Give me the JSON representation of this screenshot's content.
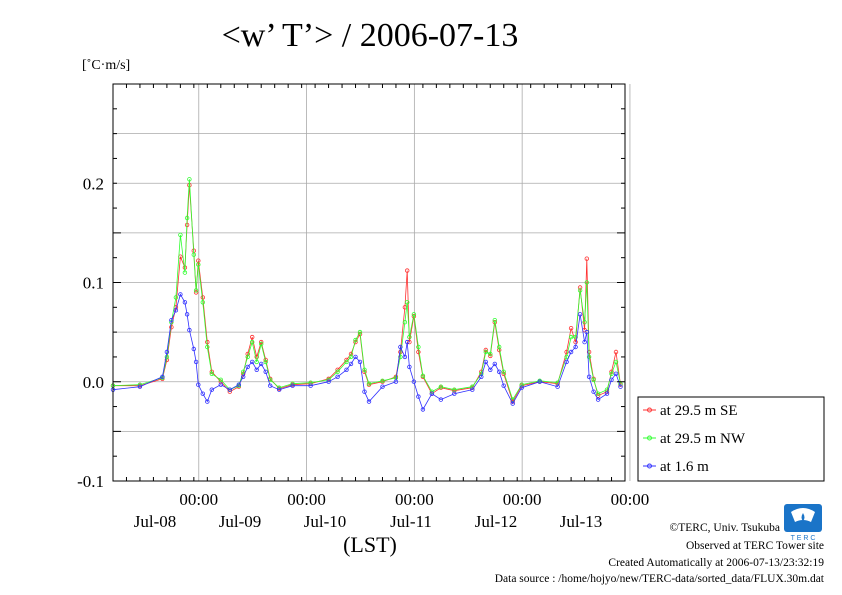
{
  "chart_data": {
    "type": "line",
    "title": "<w’ T’> / 2006-07-13",
    "ylabel": "[˚C·m/s]",
    "xlabel": "(LST)",
    "x_start": "2006-07-07 18:00",
    "ylim": [
      -0.1,
      0.3
    ],
    "yticks": [
      "0.2",
      "0.1",
      "0.0",
      "-0.1"
    ],
    "xticks_time": [
      "00:00",
      "00:00",
      "00:00",
      "00:00",
      "00:00"
    ],
    "xticks_date": [
      "Jul-08",
      "Jul-09",
      "Jul-10",
      "Jul-11",
      "Jul-12",
      "Jul-13"
    ],
    "grid": true,
    "legend_position": "right",
    "series": [
      {
        "name": "at 29.5 m SE",
        "color": "#ff3030",
        "points": [
          [
            0,
            -0.004
          ],
          [
            6,
            -0.004
          ],
          [
            11,
            0.003
          ],
          [
            12,
            0.022
          ],
          [
            13,
            0.055
          ],
          [
            14,
            0.075
          ],
          [
            15,
            0.126
          ],
          [
            16,
            0.115
          ],
          [
            16.5,
            0.158
          ],
          [
            17,
            0.198
          ],
          [
            18,
            0.132
          ],
          [
            18.5,
            0.09
          ],
          [
            19,
            0.122
          ],
          [
            20,
            0.085
          ],
          [
            21,
            0.04
          ],
          [
            22,
            0.01
          ],
          [
            24,
            0.0
          ],
          [
            26,
            -0.01
          ],
          [
            28,
            -0.005
          ],
          [
            29,
            0.008
          ],
          [
            30,
            0.028
          ],
          [
            31,
            0.045
          ],
          [
            32,
            0.025
          ],
          [
            33,
            0.04
          ],
          [
            34,
            0.022
          ],
          [
            35,
            0.003
          ],
          [
            37,
            -0.007
          ],
          [
            40,
            -0.003
          ],
          [
            44,
            -0.002
          ],
          [
            48,
            0.003
          ],
          [
            50,
            0.012
          ],
          [
            52,
            0.022
          ],
          [
            53,
            0.028
          ],
          [
            54,
            0.04
          ],
          [
            55,
            0.048
          ],
          [
            56,
            0.01
          ],
          [
            57,
            -0.003
          ],
          [
            60,
            0.0
          ],
          [
            63,
            0.005
          ],
          [
            64,
            0.03
          ],
          [
            65,
            0.075
          ],
          [
            65.5,
            0.112
          ],
          [
            66,
            0.04
          ],
          [
            67,
            0.066
          ],
          [
            68,
            0.03
          ],
          [
            69,
            0.005
          ],
          [
            71,
            -0.012
          ],
          [
            73,
            -0.006
          ],
          [
            76,
            -0.009
          ],
          [
            80,
            -0.006
          ],
          [
            82,
            0.01
          ],
          [
            83,
            0.032
          ],
          [
            84,
            0.026
          ],
          [
            85,
            0.06
          ],
          [
            86,
            0.032
          ],
          [
            87,
            0.008
          ],
          [
            89,
            -0.02
          ],
          [
            91,
            -0.004
          ],
          [
            95,
            0.0
          ],
          [
            99,
            -0.002
          ],
          [
            101,
            0.03
          ],
          [
            102,
            0.054
          ],
          [
            103,
            0.04
          ],
          [
            104,
            0.095
          ],
          [
            105,
            0.052
          ],
          [
            105.5,
            0.124
          ],
          [
            106,
            0.03
          ],
          [
            107,
            0.003
          ],
          [
            108,
            -0.014
          ],
          [
            110,
            -0.01
          ],
          [
            111,
            0.01
          ],
          [
            112,
            0.03
          ],
          [
            113,
            -0.003
          ]
        ]
      },
      {
        "name": "at 29.5 m NW",
        "color": "#30ff30",
        "points": [
          [
            0,
            -0.004
          ],
          [
            6,
            -0.003
          ],
          [
            11,
            0.004
          ],
          [
            12,
            0.025
          ],
          [
            13,
            0.06
          ],
          [
            14,
            0.085
          ],
          [
            15,
            0.148
          ],
          [
            16,
            0.11
          ],
          [
            16.5,
            0.165
          ],
          [
            17,
            0.204
          ],
          [
            18,
            0.128
          ],
          [
            18.5,
            0.092
          ],
          [
            19,
            0.118
          ],
          [
            20,
            0.08
          ],
          [
            21,
            0.035
          ],
          [
            22,
            0.008
          ],
          [
            24,
            0.002
          ],
          [
            26,
            -0.008
          ],
          [
            28,
            -0.004
          ],
          [
            29,
            0.01
          ],
          [
            30,
            0.025
          ],
          [
            31,
            0.04
          ],
          [
            32,
            0.02
          ],
          [
            33,
            0.038
          ],
          [
            34,
            0.02
          ],
          [
            35,
            0.002
          ],
          [
            37,
            -0.006
          ],
          [
            40,
            -0.002
          ],
          [
            44,
            -0.001
          ],
          [
            48,
            0.002
          ],
          [
            50,
            0.01
          ],
          [
            52,
            0.02
          ],
          [
            53,
            0.025
          ],
          [
            54,
            0.042
          ],
          [
            55,
            0.05
          ],
          [
            56,
            0.012
          ],
          [
            57,
            -0.002
          ],
          [
            60,
            0.001
          ],
          [
            63,
            0.004
          ],
          [
            64,
            0.025
          ],
          [
            65,
            0.06
          ],
          [
            65.5,
            0.08
          ],
          [
            66,
            0.045
          ],
          [
            67,
            0.068
          ],
          [
            68,
            0.035
          ],
          [
            69,
            0.006
          ],
          [
            71,
            -0.01
          ],
          [
            73,
            -0.005
          ],
          [
            76,
            -0.008
          ],
          [
            80,
            -0.005
          ],
          [
            82,
            0.008
          ],
          [
            83,
            0.03
          ],
          [
            84,
            0.028
          ],
          [
            85,
            0.062
          ],
          [
            86,
            0.035
          ],
          [
            87,
            0.01
          ],
          [
            89,
            -0.018
          ],
          [
            91,
            -0.003
          ],
          [
            95,
            0.001
          ],
          [
            99,
            -0.001
          ],
          [
            101,
            0.025
          ],
          [
            102,
            0.045
          ],
          [
            103,
            0.045
          ],
          [
            104,
            0.092
          ],
          [
            105,
            0.06
          ],
          [
            105.5,
            0.1
          ],
          [
            106,
            0.025
          ],
          [
            107,
            0.002
          ],
          [
            108,
            -0.012
          ],
          [
            110,
            -0.008
          ],
          [
            111,
            0.008
          ],
          [
            112,
            0.02
          ],
          [
            113,
            -0.002
          ]
        ]
      },
      {
        "name": "at 1.6 m",
        "color": "#3030ff",
        "points": [
          [
            0,
            -0.008
          ],
          [
            6,
            -0.005
          ],
          [
            11,
            0.005
          ],
          [
            12,
            0.03
          ],
          [
            13,
            0.062
          ],
          [
            14,
            0.072
          ],
          [
            15,
            0.088
          ],
          [
            16,
            0.08
          ],
          [
            16.5,
            0.068
          ],
          [
            17,
            0.052
          ],
          [
            18,
            0.033
          ],
          [
            18.5,
            0.02
          ],
          [
            19,
            -0.003
          ],
          [
            20,
            -0.012
          ],
          [
            21,
            -0.02
          ],
          [
            22,
            -0.008
          ],
          [
            24,
            -0.003
          ],
          [
            26,
            -0.008
          ],
          [
            28,
            -0.003
          ],
          [
            29,
            0.005
          ],
          [
            30,
            0.015
          ],
          [
            31,
            0.02
          ],
          [
            32,
            0.012
          ],
          [
            33,
            0.018
          ],
          [
            34,
            0.01
          ],
          [
            35,
            -0.004
          ],
          [
            37,
            -0.008
          ],
          [
            40,
            -0.004
          ],
          [
            44,
            -0.004
          ],
          [
            48,
            0.0
          ],
          [
            50,
            0.005
          ],
          [
            52,
            0.012
          ],
          [
            53,
            0.018
          ],
          [
            54,
            0.025
          ],
          [
            55,
            0.02
          ],
          [
            56,
            -0.01
          ],
          [
            57,
            -0.02
          ],
          [
            60,
            -0.005
          ],
          [
            63,
            0.0
          ],
          [
            64,
            0.035
          ],
          [
            65,
            0.025
          ],
          [
            65.5,
            0.04
          ],
          [
            66,
            0.015
          ],
          [
            67,
            0.0
          ],
          [
            68,
            -0.015
          ],
          [
            69,
            -0.028
          ],
          [
            71,
            -0.012
          ],
          [
            73,
            -0.018
          ],
          [
            76,
            -0.012
          ],
          [
            80,
            -0.008
          ],
          [
            82,
            0.005
          ],
          [
            83,
            0.02
          ],
          [
            84,
            0.012
          ],
          [
            85,
            0.018
          ],
          [
            86,
            0.01
          ],
          [
            87,
            -0.004
          ],
          [
            89,
            -0.022
          ],
          [
            91,
            -0.006
          ],
          [
            95,
            0.0
          ],
          [
            99,
            -0.005
          ],
          [
            101,
            0.02
          ],
          [
            102,
            0.03
          ],
          [
            103,
            0.035
          ],
          [
            104,
            0.068
          ],
          [
            105,
            0.04
          ],
          [
            105.5,
            0.05
          ],
          [
            106,
            0.005
          ],
          [
            107,
            -0.01
          ],
          [
            108,
            -0.018
          ],
          [
            110,
            -0.012
          ],
          [
            111,
            0.002
          ],
          [
            112,
            0.008
          ],
          [
            113,
            -0.005
          ]
        ]
      }
    ]
  },
  "footer": {
    "copyright": "©TERC, Univ. Tsukuba",
    "observed": "Observed at TERC Tower site",
    "created": "Created Automatically at 2006-07-13/23:32:19",
    "source": "Data source : /home/hojyo/new/TERC-data/sorted_data/FLUX.30m.dat",
    "logo_text": "T E R C"
  }
}
